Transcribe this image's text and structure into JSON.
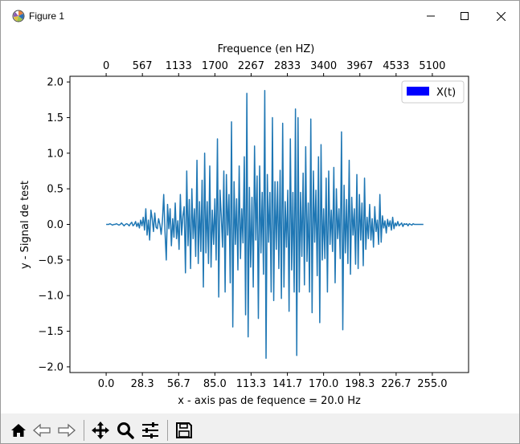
{
  "window": {
    "title": "Figure 1",
    "minimize_icon": "minimize-icon",
    "maximize_icon": "maximize-icon",
    "close_icon": "close-icon"
  },
  "toolbar": {
    "buttons": [
      {
        "name": "home-button",
        "icon": "home-icon"
      },
      {
        "name": "back-button",
        "icon": "back-arrow-icon"
      },
      {
        "name": "forward-button",
        "icon": "forward-arrow-icon"
      },
      {
        "name": "pan-button",
        "icon": "move-arrows-icon"
      },
      {
        "name": "zoom-button",
        "icon": "magnifier-icon"
      },
      {
        "name": "configure-subplots-button",
        "icon": "sliders-icon"
      },
      {
        "name": "save-button",
        "icon": "floppy-disk-icon"
      }
    ]
  },
  "chart_data": {
    "type": "line",
    "title": "",
    "xlabel": "x - axis pas de fequence = 20.0 Hz",
    "ylabel": "y - Signal de test",
    "top_xlabel": "Frequence (en HZ)",
    "xlim": [
      -28.33,
      283.33
    ],
    "ylim": [
      -2.08,
      2.08
    ],
    "xticks": [
      0.0,
      28.3,
      56.7,
      85.0,
      113.3,
      141.7,
      170.0,
      198.3,
      226.7,
      255.0
    ],
    "xtick_labels": [
      "0.0",
      "28.3",
      "56.7",
      "85.0",
      "113.3",
      "141.7",
      "170.0",
      "198.3",
      "226.7",
      "255.0"
    ],
    "yticks": [
      2.0,
      1.5,
      1.0,
      0.5,
      0.0,
      -0.5,
      -1.0,
      -1.5,
      -2.0
    ],
    "ytick_labels": [
      "2.0",
      "1.5",
      "1.0",
      "0.5",
      "0.0",
      "−0.5",
      "−1.0",
      "−1.5",
      "−2.0"
    ],
    "top_xticks": [
      0,
      28.33,
      56.67,
      85.0,
      113.33,
      141.67,
      170.0,
      198.33,
      226.67,
      255.0
    ],
    "top_xtick_labels": [
      "0",
      "567",
      "1133",
      "1700",
      "2267",
      "2833",
      "3400",
      "3967",
      "4533",
      "5100"
    ],
    "grid": false,
    "legend_position": "top-right",
    "series": [
      {
        "name": "X(t)",
        "color": "#1f77b4",
        "legend_color": "#0000ff",
        "x_start": 0,
        "x_step": 1,
        "y": [
          0.0,
          0.0,
          0.0,
          0.01,
          0.0,
          -0.01,
          0.0,
          0.0,
          0.01,
          0.0,
          -0.01,
          0.0,
          0.02,
          0.0,
          -0.02,
          0.0,
          0.01,
          0.0,
          -0.02,
          0.01,
          0.03,
          -0.02,
          0.0,
          0.04,
          -0.03,
          0.02,
          -0.05,
          0.06,
          -0.02,
          0.1,
          -0.08,
          0.22,
          -0.15,
          0.06,
          -0.22,
          0.2,
          0.08,
          -0.1,
          0.16,
          -0.04,
          -0.06,
          0.08,
          0.0,
          -0.14,
          0.05,
          0.42,
          -0.1,
          -0.5,
          0.28,
          -0.06,
          0.22,
          -0.3,
          0.08,
          -0.18,
          0.3,
          -0.2,
          0.05,
          -0.35,
          0.42,
          -0.15,
          0.12,
          0.25,
          -0.68,
          0.75,
          -0.3,
          0.35,
          -0.62,
          0.5,
          -0.2,
          0.22,
          -0.45,
          0.9,
          -0.55,
          0.32,
          -0.38,
          0.62,
          -0.88,
          1.0,
          -0.4,
          0.32,
          -0.55,
          0.82,
          -0.6,
          0.2,
          -0.28,
          0.36,
          -0.5,
          1.2,
          -1.02,
          0.48,
          0.12,
          -0.32,
          0.75,
          -0.95,
          0.7,
          -0.15,
          0.42,
          -0.82,
          1.44,
          -1.44,
          0.6,
          -0.28,
          0.36,
          -0.64,
          0.82,
          -0.48,
          0.22,
          -0.26,
          0.95,
          -1.27,
          1.84,
          -1.58,
          0.52,
          -0.6,
          0.38,
          -0.88,
          1.1,
          -0.22,
          0.68,
          -1.32,
          0.82,
          -0.4,
          0.45,
          -0.7,
          1.88,
          -1.88,
          0.7,
          -0.25,
          0.45,
          -0.95,
          1.5,
          -1.07,
          0.6,
          -0.35,
          0.6,
          -0.62,
          0.76,
          -1.04,
          1.42,
          -0.88,
          0.32,
          -0.32,
          0.48,
          -1.22,
          1.2,
          -0.64,
          0.45,
          -0.95,
          1.62,
          -1.84,
          1.5,
          -0.95,
          0.45,
          -0.45,
          0.72,
          -0.85,
          1.09,
          -0.52,
          0.3,
          -0.95,
          1.48,
          -1.24,
          0.75,
          -0.25,
          0.48,
          -0.72,
          0.95,
          -1.38,
          1.12,
          -0.5,
          0.22,
          -0.48,
          0.65,
          -0.95,
          0.75,
          -0.28,
          0.2,
          -0.38,
          0.8,
          -0.82,
          0.5,
          -0.2,
          0.22,
          -0.48,
          1.3,
          -1.48,
          0.55,
          -0.4,
          0.35,
          -0.55,
          0.9,
          -0.7,
          0.38,
          -0.15,
          0.22,
          -0.56,
          0.7,
          -0.62,
          0.42,
          -0.22,
          0.3,
          -0.58,
          0.65,
          -0.35,
          0.1,
          -0.2,
          0.28,
          -0.22,
          0.08,
          -0.32,
          0.25,
          -0.1,
          0.06,
          -0.28,
          0.42,
          -0.25,
          0.12,
          -0.05,
          0.05,
          -0.12,
          0.07,
          -0.03,
          0.05,
          -0.08,
          0.1,
          -0.06,
          0.02,
          -0.02,
          0.04,
          -0.02,
          0.0,
          0.02,
          -0.03,
          0.01,
          0.0,
          0.01,
          -0.02,
          0.01,
          0.0,
          -0.01,
          0.01,
          0.0,
          0.0,
          0.0,
          0.0,
          0.0,
          0.0,
          0.0,
          0.0
        ]
      }
    ]
  }
}
